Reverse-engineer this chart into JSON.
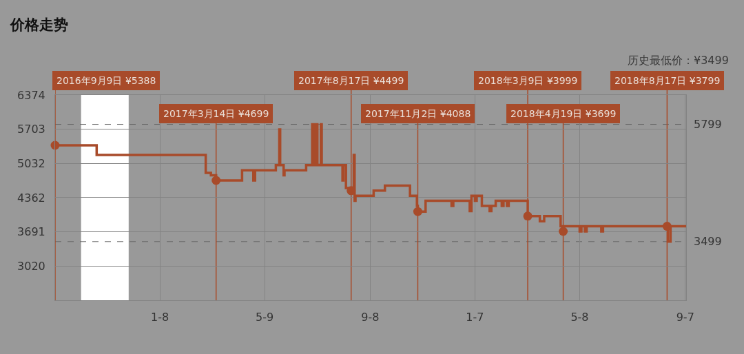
{
  "chart_data": {
    "type": "step",
    "title": "价格走势",
    "annotations": [
      "历史最低价：¥3499"
    ],
    "xlim": [
      "2016-09-09",
      "2018-09-08"
    ],
    "xticks": [
      {
        "value": "2017-01-08",
        "label": "1-8"
      },
      {
        "value": "2017-05-09",
        "label": "5-9"
      },
      {
        "value": "2017-09-08",
        "label": "9-8"
      },
      {
        "value": "2018-01-07",
        "label": "1-7"
      },
      {
        "value": "2018-05-08",
        "label": "5-8"
      },
      {
        "value": "2018-09-07",
        "label": "9-7"
      }
    ],
    "ylim": [
      2348,
      6374
    ],
    "yticks": [
      3020,
      3691,
      4362,
      5032,
      5703,
      6374
    ],
    "grid": true,
    "series": [
      {
        "color": "#a84b2a",
        "marker": "none",
        "x": [
          "2016-09-09",
          "2016-10-27",
          "2017-03-02",
          "2017-03-08",
          "2017-03-14",
          "2017-04-13",
          "2017-04-26",
          "2017-04-28",
          "2017-05-22",
          "2017-05-26",
          "2017-05-27",
          "2017-05-31",
          "2017-06-01",
          "2017-06-26",
          "2017-07-03",
          "2017-07-04",
          "2017-07-05",
          "2017-07-06",
          "2017-07-07",
          "2017-07-09",
          "2017-07-13",
          "2017-07-14",
          "2017-08-07",
          "2017-08-08",
          "2017-08-11",
          "2017-08-17",
          "2017-08-20",
          "2017-08-21",
          "2017-08-22",
          "2017-09-12",
          "2017-09-25",
          "2017-10-24",
          "2017-11-01",
          "2017-11-02",
          "2017-11-11",
          "2017-12-11",
          "2017-12-13",
          "2018-01-01",
          "2018-01-03",
          "2018-01-07",
          "2018-01-09",
          "2018-01-15",
          "2018-01-24",
          "2018-01-26",
          "2018-01-31",
          "2018-02-07",
          "2018-02-09",
          "2018-02-13",
          "2018-02-15",
          "2018-03-09",
          "2018-03-23",
          "2018-03-28",
          "2018-04-16",
          "2018-04-18",
          "2018-04-20",
          "2018-05-08",
          "2018-05-10",
          "2018-05-14",
          "2018-05-16",
          "2018-06-02",
          "2018-06-04",
          "2018-08-18",
          "2018-08-21",
          "2018-09-08"
        ],
        "values": [
          5388,
          5199,
          4849,
          4799,
          4699,
          4899,
          4699,
          4899,
          4999,
          5699,
          4999,
          4799,
          4899,
          4999,
          5799,
          4999,
          5799,
          4999,
          5799,
          4999,
          5799,
          4999,
          4699,
          4999,
          4549,
          4499,
          5199,
          4299,
          4399,
          4499,
          4599,
          4399,
          4199,
          4088,
          4299,
          4199,
          4299,
          4099,
          4399,
          4299,
          4399,
          4199,
          4099,
          4199,
          4299,
          4199,
          4299,
          4199,
          4299,
          3999,
          3899,
          3999,
          3799,
          3699,
          3799,
          3699,
          3799,
          3699,
          3799,
          3699,
          3799,
          3499,
          3799,
          3799
        ]
      },
      {
        "type": "scatter",
        "color": "#a84b2a",
        "marker": "circle",
        "x": [
          "2016-09-09",
          "2017-03-14",
          "2017-08-17",
          "2017-11-02",
          "2018-03-09",
          "2018-04-19",
          "2018-08-17"
        ],
        "values": [
          5388,
          4699,
          4499,
          4088,
          3999,
          3699,
          3799
        ]
      }
    ],
    "ref_lines": [
      {
        "axis": "y",
        "value": 5799,
        "label": "5799",
        "color": "#666666",
        "line_style": "dashed"
      },
      {
        "axis": "y",
        "value": 3499,
        "label": "3499",
        "color": "#666666",
        "line_style": "dashed"
      },
      {
        "axis": "x",
        "value": "2016-09-09",
        "label": "2016年9月9日 ¥5388",
        "color": "#a84b2a"
      },
      {
        "axis": "x",
        "value": "2017-03-14",
        "label": "2017年3月14日 ¥4699",
        "color": "#a84b2a"
      },
      {
        "axis": "x",
        "value": "2017-08-17",
        "label": "2017年8月17日 ¥4499",
        "color": "#a84b2a"
      },
      {
        "axis": "x",
        "value": "2017-11-02",
        "label": "2017年11月2日 ¥4088",
        "color": "#a84b2a"
      },
      {
        "axis": "x",
        "value": "2018-03-09",
        "label": "2018年3月9日 ¥3999",
        "color": "#a84b2a"
      },
      {
        "axis": "x",
        "value": "2018-04-19",
        "label": "2018年4月19日 ¥3699",
        "color": "#a84b2a"
      },
      {
        "axis": "x",
        "value": "2018-08-17",
        "label": "2018年8月17日 ¥3799",
        "color": "#a84b2a"
      }
    ],
    "bands": [
      {
        "axis": "x",
        "from": "2016-10-09",
        "to": "2016-12-03",
        "color": "#ffffff"
      }
    ]
  }
}
